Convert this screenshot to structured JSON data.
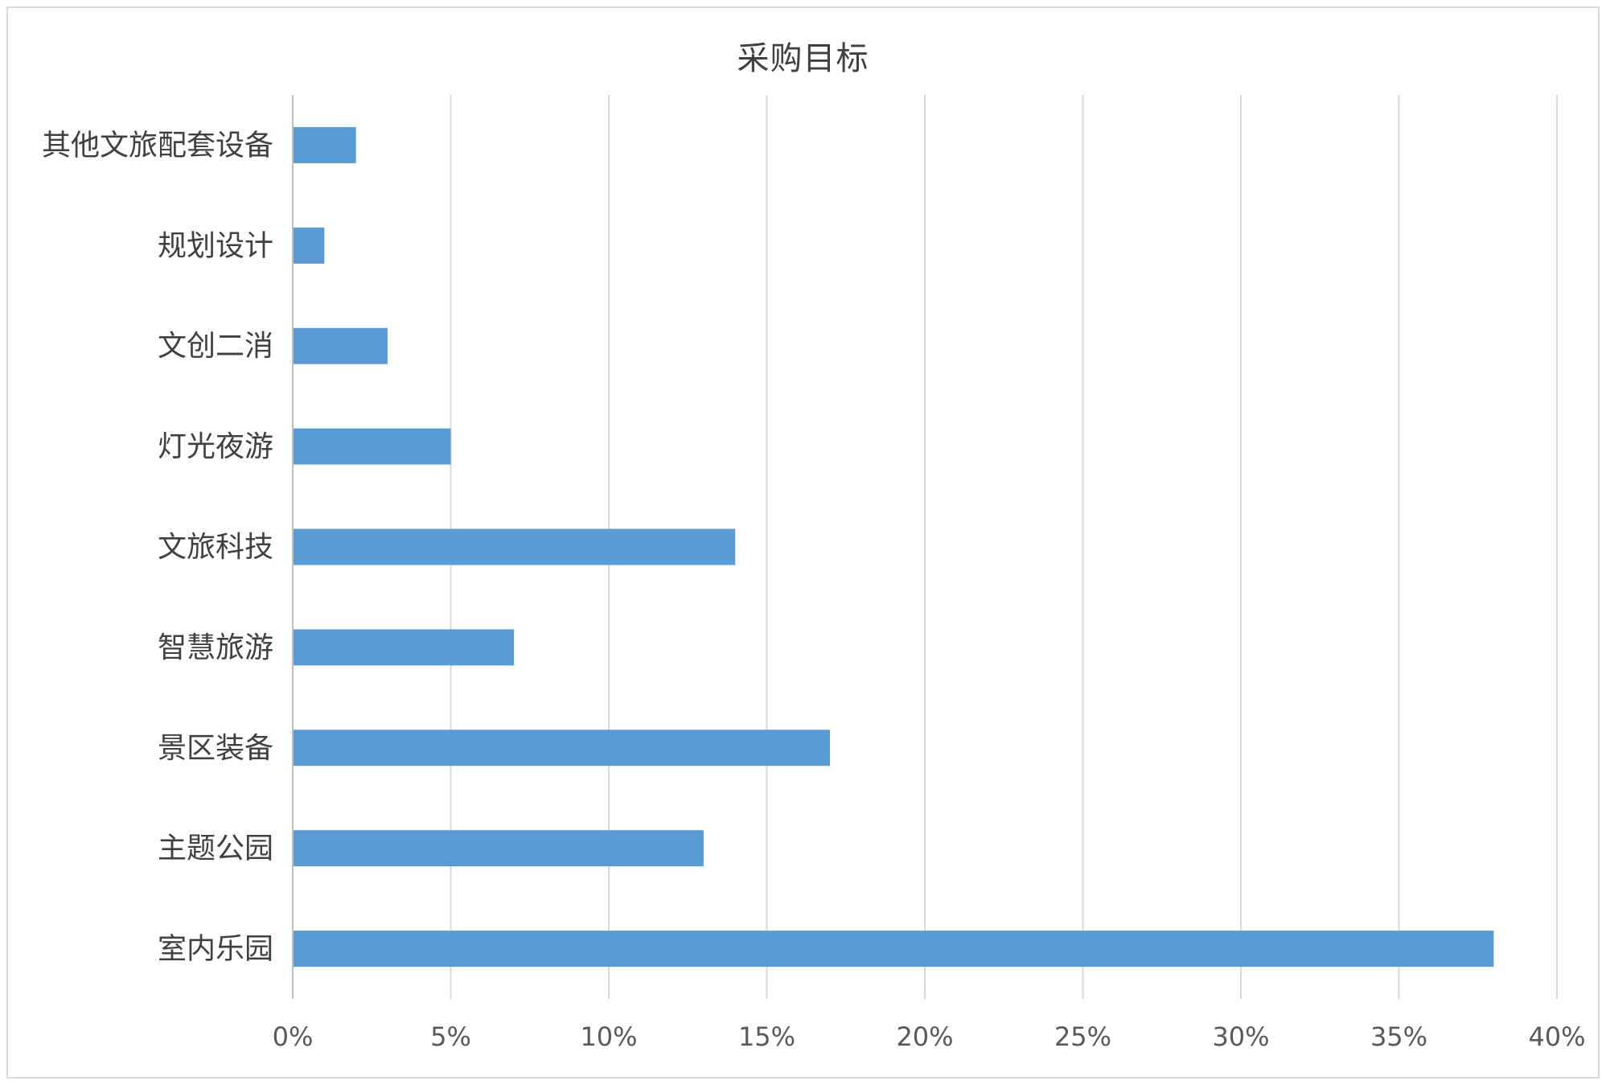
{
  "chart_data": {
    "type": "bar",
    "orientation": "horizontal",
    "title": "采购目标",
    "categories": [
      "其他文旅配套设备",
      "规划设计",
      "文创二消",
      "灯光夜游",
      "文旅科技",
      "智慧旅游",
      "景区装备",
      "主题公园",
      "室内乐园"
    ],
    "values": [
      2,
      1,
      3,
      5,
      14,
      7,
      17,
      13,
      38
    ],
    "xlim": [
      0,
      40
    ],
    "ticks": [
      0,
      5,
      10,
      15,
      20,
      25,
      30,
      35,
      40
    ],
    "tick_labels": [
      "0%",
      "5%",
      "10%",
      "15%",
      "20%",
      "25%",
      "30%",
      "35%",
      "40%"
    ],
    "xlabel": "",
    "ylabel": "",
    "grid": "vertical",
    "bar_color": "#5b9bd5",
    "legend": "none"
  }
}
